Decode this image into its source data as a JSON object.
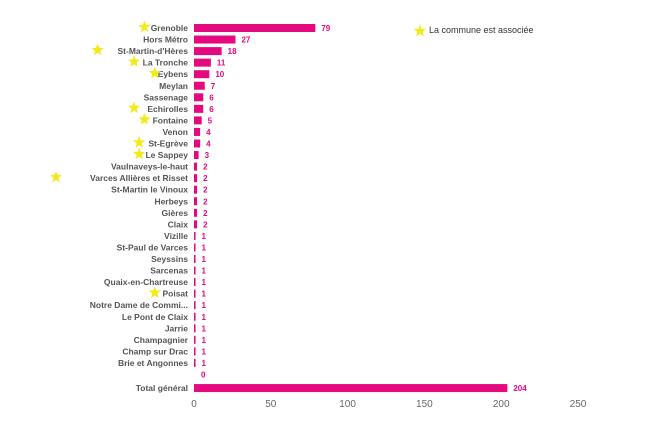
{
  "chart_data": {
    "type": "bar",
    "orientation": "horizontal",
    "title": "",
    "xlabel": "",
    "ylabel": "",
    "xlim": [
      0,
      250
    ],
    "xticks": [
      "0",
      "50",
      "100",
      "150",
      "200",
      "250"
    ],
    "grid": false,
    "bar_color": "#e5097f",
    "star_color": "#f2ea1d",
    "legend": {
      "position": "top-right",
      "text": "La commune  est associée",
      "marker": "star-icon"
    },
    "categories": [
      "Grenoble",
      "Hors Métro",
      "St-Martin-d'Hères",
      "La Tronche",
      "Eybens",
      "Meylan",
      "Sassenage",
      "Echirolles",
      "Fontaine",
      "Venon",
      "St-Egrève",
      "Le Sappey",
      "Vaulnaveys-le-haut",
      "Varces Allières et Risset",
      "St-Martin le Vinoux",
      "Herbeys",
      "Gières",
      "Claix",
      "Vizille",
      "St-Paul de Varces",
      "Seyssins",
      "Sarcenas",
      "Quaix-en-Chartreuse",
      "Poisat",
      "Notre Dame de Commi...",
      "Le Pont de Claix",
      "Jarrie",
      "Champagnier",
      "Champ sur Drac",
      "Brie et Angonnes",
      "",
      "Total général"
    ],
    "values": [
      79,
      27,
      18,
      11,
      10,
      7,
      6,
      6,
      5,
      4,
      4,
      3,
      2,
      2,
      2,
      2,
      2,
      2,
      1,
      1,
      1,
      1,
      1,
      1,
      1,
      1,
      1,
      1,
      1,
      1,
      0,
      204
    ],
    "associated": [
      true,
      false,
      true,
      true,
      true,
      false,
      false,
      true,
      true,
      false,
      true,
      true,
      false,
      true,
      false,
      false,
      false,
      false,
      false,
      false,
      false,
      false,
      false,
      true,
      false,
      false,
      false,
      false,
      false,
      false,
      false,
      false
    ]
  }
}
